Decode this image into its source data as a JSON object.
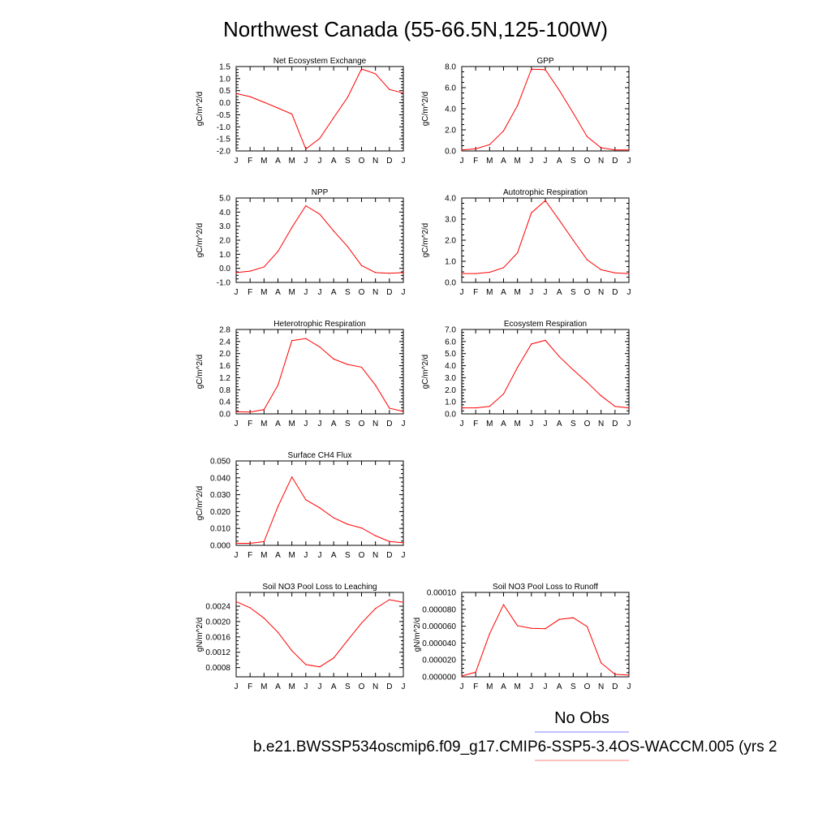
{
  "title": "Northwest Canada (55-66.5N,125-100W)",
  "legend": {
    "obs_label": "No Obs",
    "obs_color": "#8080ff",
    "case_label": "b.e21.BWSSP534oscmip6.f09_g17.CMIP6-SSP5-3.4OS-WACCM.005 (yrs 2",
    "case_color": "#ff8080"
  },
  "line_color": "#ff0000",
  "chart_data": [
    {
      "type": "line",
      "title": "Net Ecosystem Exchange",
      "ylabel": "gC/m^2/d",
      "xlabel": "",
      "x": [
        "J",
        "F",
        "M",
        "A",
        "M",
        "J",
        "J",
        "A",
        "S",
        "O",
        "N",
        "D",
        "J"
      ],
      "ylim": [
        -2.0,
        1.5
      ],
      "yticks": [
        -2.0,
        -1.5,
        -1.0,
        -0.5,
        0.0,
        0.5,
        1.0,
        1.5
      ],
      "ytick_labels": [
        "-2.0",
        "-1.5",
        "-1.0",
        "-0.5",
        "0.0",
        "0.5",
        "1.0",
        "1.5"
      ],
      "values": [
        0.38,
        0.25,
        0.02,
        -0.22,
        -0.47,
        -1.92,
        -1.48,
        -0.62,
        0.22,
        1.4,
        1.2,
        0.55,
        0.4
      ],
      "grid": false
    },
    {
      "type": "line",
      "title": "GPP",
      "ylabel": "gC/m^2/d",
      "xlabel": "",
      "x": [
        "J",
        "F",
        "M",
        "A",
        "M",
        "J",
        "J",
        "A",
        "S",
        "O",
        "N",
        "D",
        "J"
      ],
      "ylim": [
        0.0,
        8.0
      ],
      "yticks": [
        0.0,
        2.0,
        4.0,
        6.0,
        8.0
      ],
      "ytick_labels": [
        "0.0",
        "2.0",
        "4.0",
        "6.0",
        "8.0"
      ],
      "values": [
        0.1,
        0.2,
        0.6,
        1.9,
        4.3,
        7.75,
        7.7,
        5.75,
        3.6,
        1.35,
        0.3,
        0.1,
        0.1
      ],
      "grid": false
    },
    {
      "type": "line",
      "title": "NPP",
      "ylabel": "gC/m^2/d",
      "xlabel": "",
      "x": [
        "J",
        "F",
        "M",
        "A",
        "M",
        "J",
        "J",
        "A",
        "S",
        "O",
        "N",
        "D",
        "J"
      ],
      "ylim": [
        -1.0,
        5.0
      ],
      "yticks": [
        -1.0,
        0.0,
        1.0,
        2.0,
        3.0,
        4.0,
        5.0
      ],
      "ytick_labels": [
        "-1.0",
        "0.0",
        "1.0",
        "2.0",
        "3.0",
        "4.0",
        "5.0"
      ],
      "values": [
        -0.3,
        -0.2,
        0.1,
        1.2,
        2.9,
        4.45,
        3.85,
        2.65,
        1.55,
        0.2,
        -0.3,
        -0.35,
        -0.3
      ],
      "grid": false
    },
    {
      "type": "line",
      "title": "Autotrophic Respiration",
      "ylabel": "gC/m^2/d",
      "xlabel": "",
      "x": [
        "J",
        "F",
        "M",
        "A",
        "M",
        "J",
        "J",
        "A",
        "S",
        "O",
        "N",
        "D",
        "J"
      ],
      "ylim": [
        0.0,
        4.0
      ],
      "yticks": [
        0.0,
        1.0,
        2.0,
        3.0,
        4.0
      ],
      "ytick_labels": [
        "0.0",
        "1.0",
        "2.0",
        "3.0",
        "4.0"
      ],
      "values": [
        0.42,
        0.42,
        0.48,
        0.7,
        1.4,
        3.3,
        3.88,
        2.95,
        2.0,
        1.07,
        0.6,
        0.45,
        0.42
      ],
      "grid": false
    },
    {
      "type": "line",
      "title": "Heterotrophic Respiration",
      "ylabel": "gC/m^2/d",
      "xlabel": "",
      "x": [
        "J",
        "F",
        "M",
        "A",
        "M",
        "J",
        "J",
        "A",
        "S",
        "O",
        "N",
        "D",
        "J"
      ],
      "ylim": [
        0.0,
        2.8
      ],
      "yticks": [
        0.0,
        0.4,
        0.8,
        1.2,
        1.6,
        2.0,
        2.4,
        2.8
      ],
      "ytick_labels": [
        "0.0",
        "0.4",
        "0.8",
        "1.2",
        "1.6",
        "2.0",
        "2.4",
        "2.8"
      ],
      "values": [
        0.07,
        0.06,
        0.14,
        0.95,
        2.43,
        2.5,
        2.22,
        1.82,
        1.64,
        1.55,
        0.95,
        0.19,
        0.08
      ],
      "grid": false
    },
    {
      "type": "line",
      "title": "Ecosystem Respiration",
      "ylabel": "gC/m^2/d",
      "xlabel": "",
      "x": [
        "J",
        "F",
        "M",
        "A",
        "M",
        "J",
        "J",
        "A",
        "S",
        "O",
        "N",
        "D",
        "J"
      ],
      "ylim": [
        0.0,
        7.0
      ],
      "yticks": [
        0.0,
        1.0,
        2.0,
        3.0,
        4.0,
        5.0,
        6.0,
        7.0
      ],
      "ytick_labels": [
        "0.0",
        "1.0",
        "2.0",
        "3.0",
        "4.0",
        "5.0",
        "6.0",
        "7.0"
      ],
      "values": [
        0.5,
        0.5,
        0.62,
        1.65,
        3.85,
        5.8,
        6.1,
        4.75,
        3.65,
        2.62,
        1.5,
        0.62,
        0.5
      ],
      "grid": false
    },
    {
      "type": "line",
      "title": "Surface CH4 Flux",
      "ylabel": "gC/m^2/d",
      "xlabel": "",
      "x": [
        "J",
        "F",
        "M",
        "A",
        "M",
        "J",
        "J",
        "A",
        "S",
        "O",
        "N",
        "D",
        "J"
      ],
      "ylim": [
        0.0,
        0.05
      ],
      "yticks": [
        0.0,
        0.01,
        0.02,
        0.03,
        0.04,
        0.05
      ],
      "ytick_labels": [
        "0.000",
        "0.010",
        "0.020",
        "0.030",
        "0.040",
        "0.050"
      ],
      "values": [
        0.0012,
        0.0012,
        0.0022,
        0.023,
        0.0405,
        0.027,
        0.0222,
        0.0163,
        0.0125,
        0.0103,
        0.0057,
        0.0023,
        0.0015
      ],
      "grid": false
    },
    {
      "type": "line",
      "title": "Soil NO3 Pool Loss to Leaching",
      "ylabel": "gN/m^2/d",
      "xlabel": "",
      "x": [
        "J",
        "F",
        "M",
        "A",
        "M",
        "J",
        "J",
        "A",
        "S",
        "O",
        "N",
        "D",
        "J"
      ],
      "ylim": [
        0.00056,
        0.00276
      ],
      "yticks": [
        0.0008,
        0.0012,
        0.0016,
        0.002,
        0.0024
      ],
      "ytick_labels": [
        "0.0008",
        "0.0012",
        "0.0016",
        "0.0020",
        "0.0024"
      ],
      "values": [
        0.00252,
        0.00236,
        0.00209,
        0.00172,
        0.00124,
        0.00088,
        0.00082,
        0.00105,
        0.00151,
        0.00196,
        0.00234,
        0.00257,
        0.0025
      ],
      "grid": false
    },
    {
      "type": "line",
      "title": "Soil NO3 Pool Loss to Runoff",
      "ylabel": "gN/m^2/d",
      "xlabel": "",
      "x": [
        "J",
        "F",
        "M",
        "A",
        "M",
        "J",
        "J",
        "A",
        "S",
        "O",
        "N",
        "D",
        "J"
      ],
      "ylim": [
        0.0,
        0.0001
      ],
      "yticks": [
        0.0,
        2e-05,
        4e-05,
        6e-05,
        8e-05,
        0.0001
      ],
      "ytick_labels": [
        "0.000000",
        "0.000020",
        "0.000040",
        "0.000060",
        "0.000080",
        "0.00010"
      ],
      "values": [
        1e-06,
        5.5e-06,
        5.1e-05,
        8.55e-05,
        6.05e-05,
        5.75e-05,
        5.7e-05,
        6.8e-05,
        7e-05,
        5.95e-05,
        1.65e-05,
        3e-06,
        2e-06
      ],
      "grid": false
    }
  ]
}
